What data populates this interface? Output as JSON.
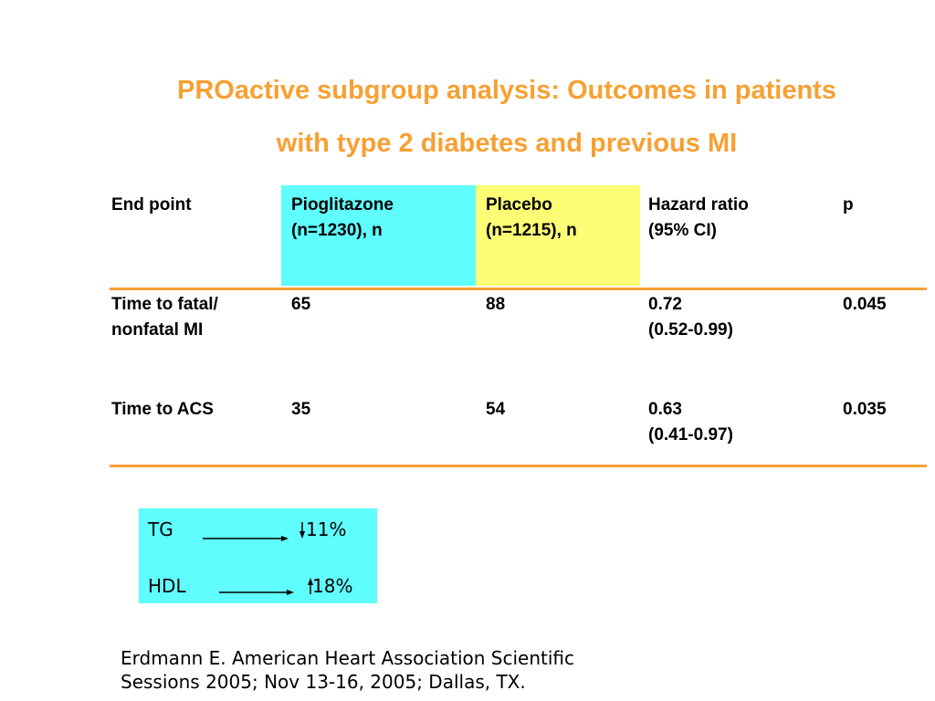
{
  "title": {
    "line1": "PROactive subgroup analysis: Outcomes in patients",
    "line2": "with type 2 diabetes and previous MI"
  },
  "colors": {
    "title": "#f7a033",
    "rule": "#f7a033",
    "pioglitazone_header_bg": "#5ffdfd",
    "placebo_header_bg": "#fdfd76",
    "callout_bg": "#5ffdfd"
  },
  "table": {
    "headers": [
      [
        "End point"
      ],
      [
        "Pioglitazone",
        "(n=1230), n"
      ],
      [
        "Placebo",
        "(n=1215), n"
      ],
      [
        "Hazard ratio",
        "(95% CI)"
      ],
      [
        "p"
      ]
    ],
    "rows": [
      {
        "end_point": [
          "Time to fatal/",
          "nonfatal MI"
        ],
        "pioglitazone": "65",
        "placebo": "88",
        "hazard_ratio": [
          "0.72",
          "(0.52-0.99)"
        ],
        "p": "0.045"
      },
      {
        "end_point": [
          "Time to ACS"
        ],
        "pioglitazone": "35",
        "placebo": "54",
        "hazard_ratio": [
          "0.63",
          "(0.41-0.97)"
        ],
        "p": "0.035"
      }
    ]
  },
  "callout": {
    "items": [
      {
        "label": "TG",
        "direction": "down-arrow-icon",
        "value": "11%"
      },
      {
        "label": "HDL",
        "direction": "up-arrow-icon",
        "value": "18%"
      }
    ]
  },
  "citation": {
    "line1": "Erdmann  E. American Heart Association Scientific",
    "line2": "Sessions 2005; Nov 13-16, 2005; Dallas, TX."
  }
}
